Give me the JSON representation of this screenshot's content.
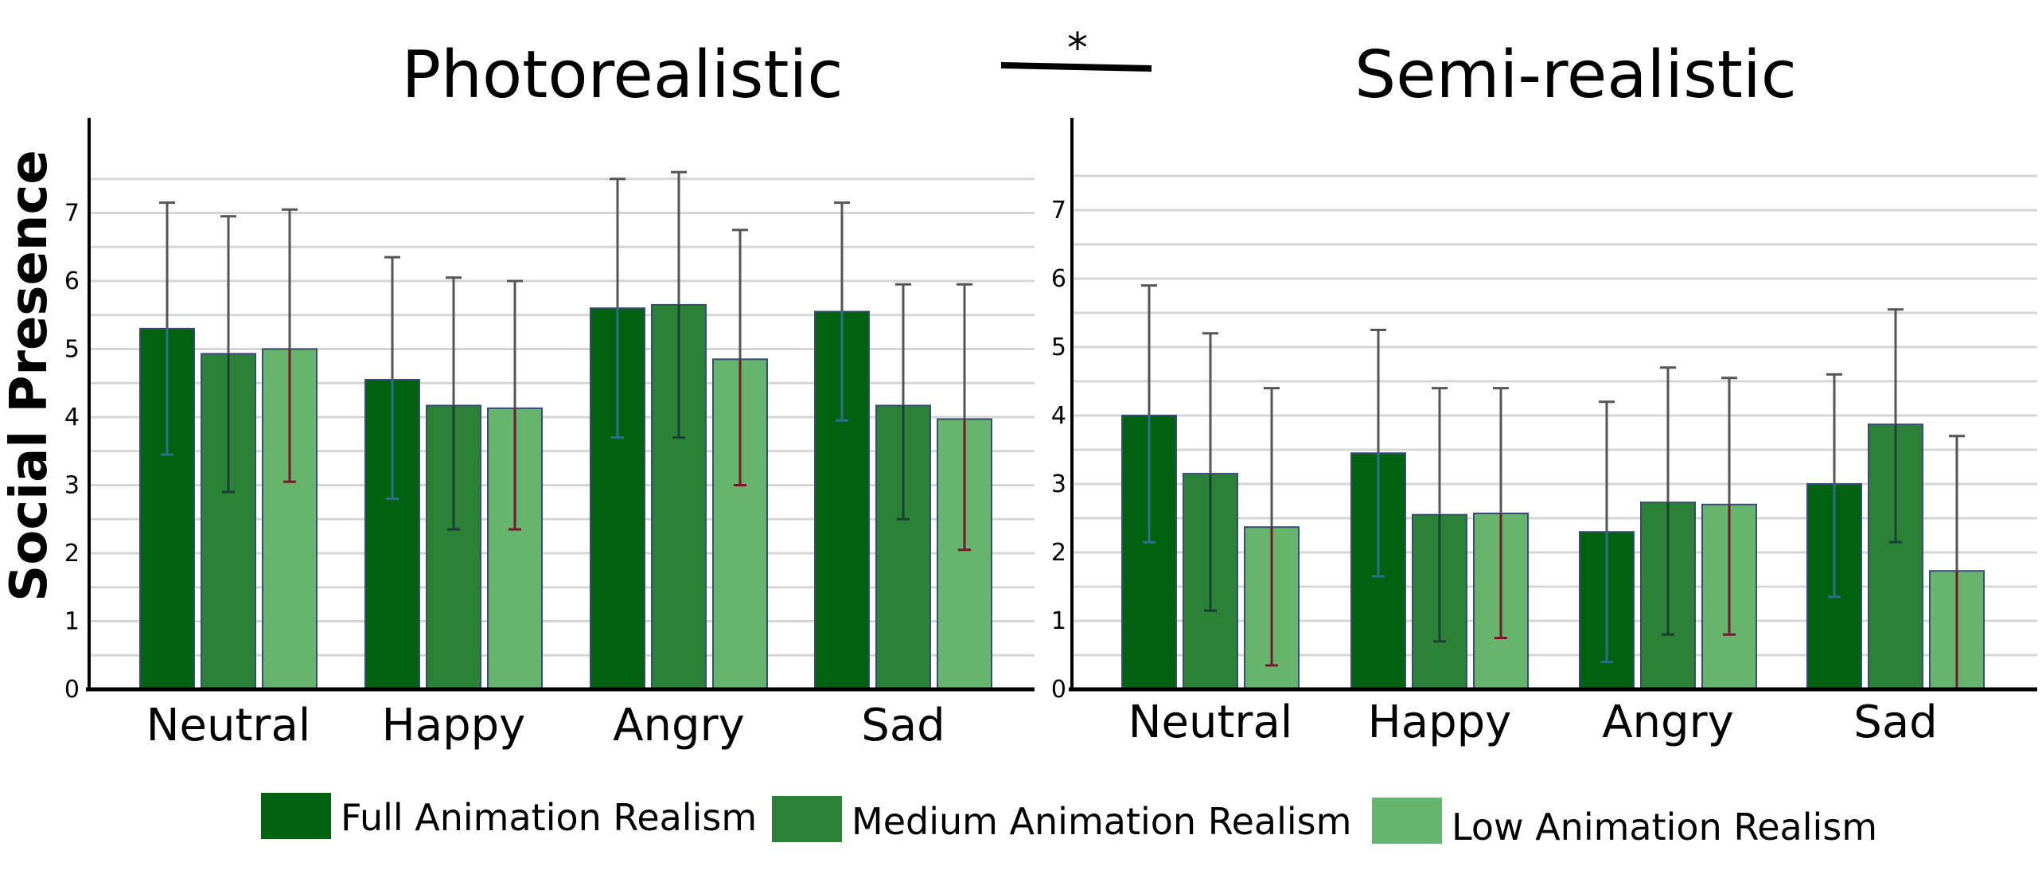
{
  "figure": {
    "ylabel": "Social Presence",
    "significance_marker": "*"
  },
  "legend": [
    {
      "label": "Full Animation Realism",
      "color": "#00610f"
    },
    {
      "label": "Medium Animation Realism",
      "color": "#2b8136"
    },
    {
      "label": "Low Animation Realism",
      "color": "#66b56e"
    }
  ],
  "chart_data": [
    {
      "type": "bar",
      "title": "Photorealistic",
      "xlabel": "",
      "ylabel": "Social Presence",
      "ylim": [
        0,
        8
      ],
      "yticks": [
        0,
        1,
        2,
        3,
        4,
        5,
        6,
        7
      ],
      "categories": [
        "Neutral",
        "Happy",
        "Angry",
        "Sad"
      ],
      "series": [
        {
          "name": "Full Animation Realism",
          "color": "#00610f",
          "values": [
            5.3,
            4.55,
            5.6,
            5.55
          ],
          "err_low": [
            3.45,
            2.8,
            3.7,
            3.95
          ],
          "err_high": [
            7.15,
            6.35,
            7.5,
            7.15
          ]
        },
        {
          "name": "Medium Animation Realism",
          "color": "#2b8136",
          "values": [
            4.93,
            4.17,
            5.65,
            4.17
          ],
          "err_low": [
            2.9,
            2.35,
            3.7,
            2.5
          ],
          "err_high": [
            6.95,
            6.05,
            7.6,
            5.95
          ]
        },
        {
          "name": "Low Animation Realism",
          "color": "#66b56e",
          "values": [
            5.0,
            4.13,
            4.85,
            3.97
          ],
          "err_low": [
            3.05,
            2.35,
            3.0,
            2.05
          ],
          "err_high": [
            7.05,
            6.0,
            6.75,
            5.95
          ]
        }
      ]
    },
    {
      "type": "bar",
      "title": "Semi-realistic",
      "xlabel": "",
      "ylabel": "",
      "ylim": [
        0,
        8
      ],
      "yticks": [
        0,
        1,
        2,
        3,
        4,
        5,
        6,
        7
      ],
      "categories": [
        "Neutral",
        "Happy",
        "Angry",
        "Sad"
      ],
      "series": [
        {
          "name": "Full Animation Realism",
          "color": "#00610f",
          "values": [
            4.0,
            3.45,
            2.3,
            3.0
          ],
          "err_low": [
            2.15,
            1.65,
            0.4,
            1.35
          ],
          "err_high": [
            5.9,
            5.25,
            4.2,
            4.6
          ]
        },
        {
          "name": "Medium Animation Realism",
          "color": "#2b8136",
          "values": [
            3.15,
            2.55,
            2.73,
            3.87
          ],
          "err_low": [
            1.15,
            0.7,
            0.8,
            2.15
          ],
          "err_high": [
            5.2,
            4.4,
            4.7,
            5.55
          ]
        },
        {
          "name": "Low Animation Realism",
          "color": "#66b56e",
          "values": [
            2.37,
            2.57,
            2.7,
            1.73
          ],
          "err_low": [
            0.35,
            0.75,
            0.8,
            0.0
          ],
          "err_high": [
            4.4,
            4.4,
            4.55,
            3.7
          ]
        }
      ]
    }
  ]
}
